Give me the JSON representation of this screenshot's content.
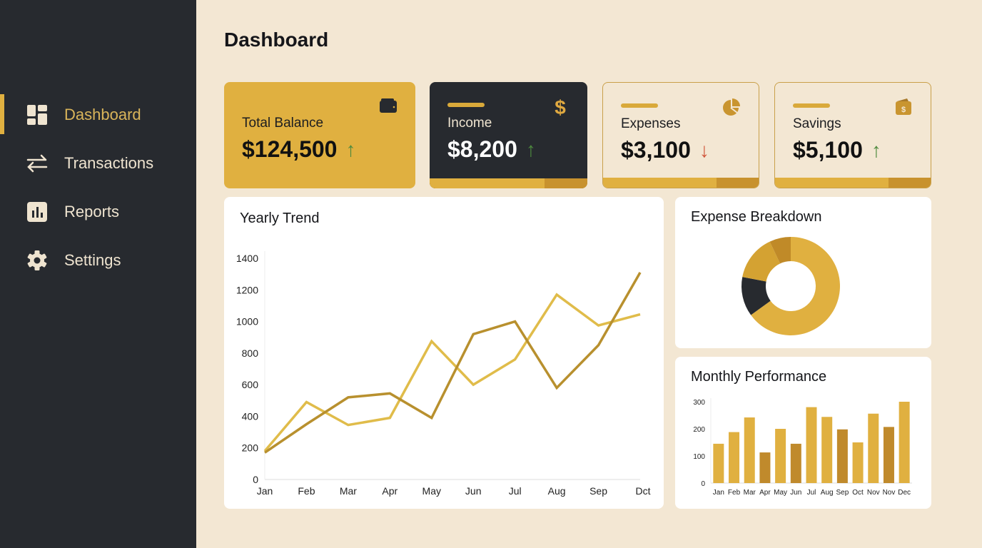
{
  "sidebar": {
    "items": [
      {
        "label": "Dashboard",
        "icon": "dashboard-grid-icon",
        "active": true
      },
      {
        "label": "Transactions",
        "icon": "swap-arrows-icon"
      },
      {
        "label": "Reports",
        "icon": "bar-chart-icon"
      },
      {
        "label": "Settings",
        "icon": "gear-icon"
      }
    ]
  },
  "header": {
    "title": "Dashboard"
  },
  "cards": [
    {
      "title": "Total Balance",
      "value": "$124,500",
      "trend": "up",
      "icon": "wallet-icon"
    },
    {
      "title": "Income",
      "value": "$8,200",
      "trend": "up",
      "icon": "dollar-icon"
    },
    {
      "title": "Expenses",
      "value": "$3,100",
      "trend": "down",
      "icon": "pie-chart-icon"
    },
    {
      "title": "Savings",
      "value": "$5,100",
      "trend": "up",
      "icon": "money-wallet-icon"
    }
  ],
  "colors": {
    "accent": "#e0b040",
    "dark": "#272a2f",
    "background": "#f3e7d3",
    "up": "#4e8a3e",
    "down": "#d0553a"
  },
  "chart_data": [
    {
      "type": "line",
      "title": "Yearly Trend",
      "categories": [
        "Jan",
        "Feb",
        "Mar",
        "Apr",
        "May",
        "Jun",
        "Jul",
        "Aug",
        "Sep",
        "Dct"
      ],
      "yticks": [
        0,
        200,
        400,
        600,
        800,
        1000,
        1200,
        1400
      ],
      "ylim": [
        0,
        1400
      ],
      "series": [
        {
          "values": [
            180,
            490,
            345,
            390,
            875,
            600,
            760,
            1170,
            975,
            1045
          ],
          "color": "#e0bc4a"
        },
        {
          "values": [
            170,
            350,
            520,
            545,
            390,
            920,
            1000,
            580,
            850,
            1310
          ],
          "color": "#b8902e"
        }
      ]
    },
    {
      "type": "pie",
      "title": "Expense Breakdown",
      "values": [
        65,
        13,
        15,
        7
      ],
      "colors": [
        "#e0b040",
        "#272a2f",
        "#d4a232",
        "#c08a28"
      ]
    },
    {
      "type": "bar",
      "title": "Monthly Performance",
      "categories": [
        "Jan",
        "Feb",
        "Mar",
        "Apr",
        "May",
        "Jun",
        "Jul",
        "Aug",
        "Sep",
        "Oct",
        "Nov",
        "Nov",
        "Dec"
      ],
      "values": [
        145,
        188,
        242,
        113,
        200,
        145,
        280,
        244,
        198,
        150,
        256,
        207,
        300
      ],
      "colors": [
        "#e0b040",
        "#e0b040",
        "#e0b040",
        "#c08a2c",
        "#e0b040",
        "#c08a2c",
        "#e0b040",
        "#e0b040",
        "#c08a2c",
        "#e0b040",
        "#e0b040",
        "#c08a2c",
        "#e0b040"
      ],
      "yticks": [
        0,
        100,
        200,
        300
      ],
      "ylim": [
        0,
        300
      ]
    }
  ]
}
